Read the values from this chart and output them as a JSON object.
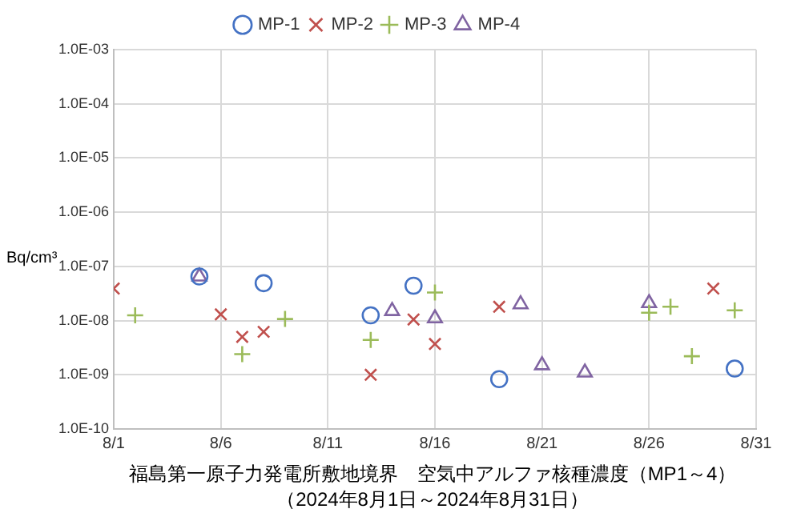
{
  "chart_data": {
    "type": "scatter",
    "title": "福島第一原子力発電所敷地境界　空気中アルファ核種濃度（MP1～4）",
    "subtitle": "（2024年8月1日～2024年8月31日）",
    "ylabel": "Bq/cm³",
    "log": "y",
    "grid": true,
    "legend": "top",
    "xlim": [
      "2024-08-01",
      "2024-08-31"
    ],
    "xticks": [
      {
        "value": "2024-08-01",
        "label": "8/1"
      },
      {
        "value": "2024-08-06",
        "label": "8/6"
      },
      {
        "value": "2024-08-11",
        "label": "8/11"
      },
      {
        "value": "2024-08-16",
        "label": "8/16"
      },
      {
        "value": "2024-08-21",
        "label": "8/21"
      },
      {
        "value": "2024-08-26",
        "label": "8/26"
      },
      {
        "value": "2024-08-31",
        "label": "8/31"
      }
    ],
    "ylim": [
      1e-10,
      0.001
    ],
    "yticks": [
      {
        "value": 1e-10,
        "label": "1.0E-10"
      },
      {
        "value": 1e-09,
        "label": "1.0E-09"
      },
      {
        "value": 1e-08,
        "label": "1.0E-08"
      },
      {
        "value": 1e-07,
        "label": "1.0E-07"
      },
      {
        "value": 1e-06,
        "label": "1.0E-06"
      },
      {
        "value": 1e-05,
        "label": "1.0E-05"
      },
      {
        "value": 0.0001,
        "label": "1.0E-04"
      },
      {
        "value": 0.001,
        "label": "1.0E-03"
      }
    ],
    "series": [
      {
        "name": "MP-1",
        "color": "#4472c4",
        "marker": "circle",
        "x": [
          "2024-08-05",
          "2024-08-08",
          "2024-08-13",
          "2024-08-15",
          "2024-08-19",
          "2024-08-30"
        ],
        "values": [
          6.5e-08,
          4.9e-08,
          1.25e-08,
          4.4e-08,
          8.3e-10,
          1.3e-09
        ]
      },
      {
        "name": "MP-2",
        "color": "#c0504d",
        "marker": "x",
        "x": [
          "2024-08-01",
          "2024-08-06",
          "2024-08-07",
          "2024-08-08",
          "2024-08-13",
          "2024-08-15",
          "2024-08-16",
          "2024-08-19",
          "2024-08-29"
        ],
        "values": [
          3.9e-08,
          1.3e-08,
          5e-09,
          6.2e-09,
          1e-09,
          1.05e-08,
          3.7e-09,
          1.8e-08,
          3.9e-08
        ]
      },
      {
        "name": "MP-3",
        "color": "#9bbb59",
        "marker": "cross",
        "x": [
          "2024-08-02",
          "2024-08-07",
          "2024-08-09",
          "2024-08-13",
          "2024-08-16",
          "2024-08-26",
          "2024-08-27",
          "2024-08-28",
          "2024-08-30"
        ],
        "values": [
          1.25e-08,
          2.4e-09,
          1.07e-08,
          4.4e-09,
          3.3e-08,
          1.4e-08,
          1.8e-08,
          2.2e-09,
          1.55e-08
        ]
      },
      {
        "name": "MP-4",
        "color": "#8064a2",
        "marker": "triangle",
        "x": [
          "2024-08-05",
          "2024-08-14",
          "2024-08-16",
          "2024-08-20",
          "2024-08-21",
          "2024-08-23",
          "2024-08-26"
        ],
        "values": [
          6.5e-08,
          1.5e-08,
          1.1e-08,
          2e-08,
          1.5e-09,
          1.1e-09,
          2.1e-08
        ]
      }
    ]
  }
}
